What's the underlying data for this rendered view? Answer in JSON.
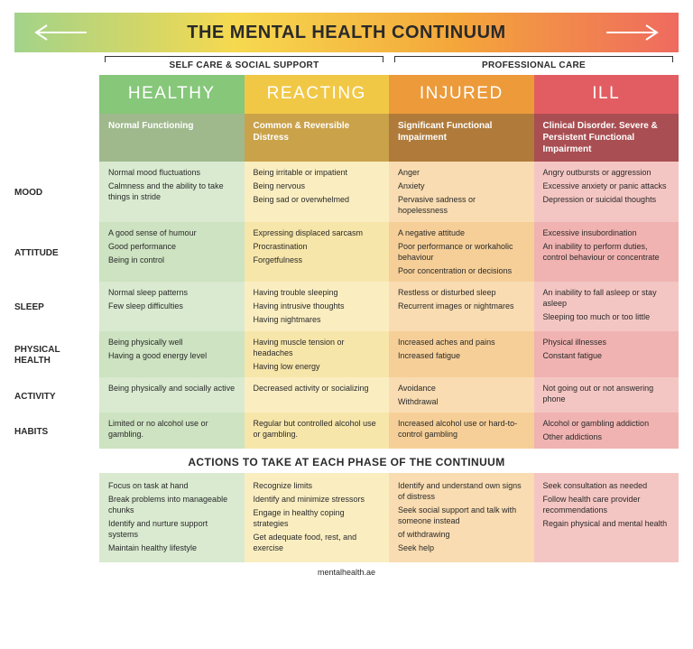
{
  "title": "THE MENTAL HEALTH CONTINUUM",
  "title_gradient": [
    "#a2d38a",
    "#f6d94f",
    "#f4a63a",
    "#ef6a5f"
  ],
  "care": {
    "left": "SELF CARE & SOCIAL SUPPORT",
    "right": "PROFESSIONAL CARE"
  },
  "columns": [
    {
      "key": "healthy",
      "header": "HEALTHY",
      "header_bg": "#86c77a",
      "sub": "Normal Functioning",
      "sub_bg": "#9fb98d",
      "alt1_bg": "#d9ead0",
      "alt2_bg": "#cde3c1",
      "action_bg": "#d9ead0"
    },
    {
      "key": "reacting",
      "header": "REACTING",
      "header_bg": "#f1c846",
      "sub": "Common & Reversible Distress",
      "sub_bg": "#caa24a",
      "alt1_bg": "#faeec1",
      "alt2_bg": "#f7e6aa",
      "action_bg": "#faeec1"
    },
    {
      "key": "injured",
      "header": "INJURED",
      "header_bg": "#ec9a3a",
      "sub": "Significant Functional Impairment",
      "sub_bg": "#b07b3a",
      "alt1_bg": "#f9dcb1",
      "alt2_bg": "#f6cf98",
      "action_bg": "#f9dcb1"
    },
    {
      "key": "ill",
      "header": "ILL",
      "header_bg": "#e25d62",
      "sub": "Clinical Disorder. Severe & Persistent Functional Impairment",
      "sub_bg": "#a94e52",
      "alt1_bg": "#f4c6c3",
      "alt2_bg": "#f0b3b1",
      "action_bg": "#f4c6c3"
    }
  ],
  "rows": [
    {
      "label": "MOOD",
      "cells": [
        [
          "Normal mood fluctuations",
          "Calmness and the ability to take things in stride"
        ],
        [
          "Being irritable or impatient",
          "Being nervous",
          "Being sad or overwhelmed"
        ],
        [
          "Anger",
          "Anxiety",
          "Pervasive sadness or hopelessness"
        ],
        [
          "Angry outbursts or aggression",
          "Excessive anxiety or panic attacks",
          "Depression or suicidal thoughts"
        ]
      ]
    },
    {
      "label": "ATTITUDE",
      "cells": [
        [
          "A good sense of humour",
          "Good performance",
          "Being in control"
        ],
        [
          "Expressing displaced sarcasm",
          "Procrastination",
          "Forgetfulness"
        ],
        [
          "A negative attitude",
          "Poor performance or workaholic behaviour",
          "Poor concentration or decisions"
        ],
        [
          "Excessive insubordination",
          "An inability to perform duties, control behaviour or concentrate"
        ]
      ]
    },
    {
      "label": "SLEEP",
      "cells": [
        [
          "Normal sleep patterns",
          "Few sleep difficulties"
        ],
        [
          "Having trouble sleeping",
          "Having intrusive thoughts",
          "Having nightmares"
        ],
        [
          "Restless or disturbed sleep",
          "Recurrent images or nightmares"
        ],
        [
          "An inability to fall asleep or stay asleep",
          "Sleeping too much or too little"
        ]
      ]
    },
    {
      "label": "PHYSICAL HEALTH",
      "cells": [
        [
          "Being physically well",
          "Having a good energy level"
        ],
        [
          "Having muscle tension or headaches",
          "Having low energy"
        ],
        [
          "Increased aches and pains",
          "Increased fatigue"
        ],
        [
          "Physical illnesses",
          "Constant fatigue"
        ]
      ]
    },
    {
      "label": "ACTIVITY",
      "cells": [
        [
          "Being physically and socially active"
        ],
        [
          "Decreased activity or socializing"
        ],
        [
          "Avoidance",
          "Withdrawal"
        ],
        [
          "Not going out or not answering phone"
        ]
      ]
    },
    {
      "label": "HABITS",
      "cells": [
        [
          "Limited or no alcohol use or gambling."
        ],
        [
          "Regular but controlled alcohol use or gambling."
        ],
        [
          "Increased alcohol use or hard-to-control gambling"
        ],
        [
          "Alcohol or gambling addiction",
          "Other addictions"
        ]
      ]
    }
  ],
  "actions_title": "ACTIONS TO TAKE AT EACH PHASE OF THE CONTINUUM",
  "actions": [
    [
      "Focus on task at hand",
      "Break problems into manageable chunks",
      "Identify and nurture support systems",
      "Maintain healthy lifestyle"
    ],
    [
      "Recognize limits",
      "Identify and minimize stressors",
      "Engage in healthy coping strategies",
      "Get adequate food, rest, and exercise"
    ],
    [
      "Identify and understand own signs of distress",
      "Seek social support and talk with someone instead",
      "of withdrawing",
      "Seek help"
    ],
    [
      "Seek consultation as needed",
      "Follow health care provider recommendations",
      "Regain physical and mental health"
    ]
  ],
  "footer": "mentalhealth.ae"
}
